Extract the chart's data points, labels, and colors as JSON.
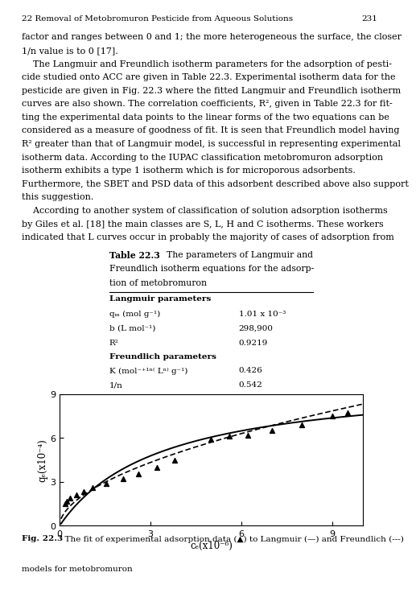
{
  "title_header": "22 Removal of Metobromuron Pesticide from Aqueous Solutions",
  "page_number": "231",
  "body_text": [
    "factor and ranges between 0 and 1; the more heterogeneous the surface, the closer",
    "1/n value is to 0 [17].",
    "    The Langmuir and Freundlich isotherm parameters for the adsorption of pesti-",
    "cide studied onto ACC are given in Table 22.3. Experimental isotherm data for the",
    "pesticide are given in Fig. 22.3 where the fitted Langmuir and Freundlich isotherm",
    "curves are also shown. The correlation coefficients, R², given in Table 22.3 for fit-",
    "ting the experimental data points to the linear forms of the two equations can be",
    "considered as a measure of goodness of fit. It is seen that Freundlich model having",
    "R² greater than that of Langmuir model, is successful in representing experimental",
    "isotherm data. According to the IUPAC classification metobromuron adsorption",
    "isotherm exhibits a type 1 isotherm which is for microporous adsorbents.",
    "Furthermore, the SBET and PSD data of this adsorbent described above also support",
    "this suggestion.",
    "    According to another system of classification of solution adsorption isotherms",
    "by Giles et al. [18] the main classes are S, L, H and C isotherms. These workers",
    "indicated that L curves occur in probably the majority of cases of adsorption from"
  ],
  "langmuir_params": {
    "qm": 0.00101,
    "b": 298900
  },
  "freundlich_params": {
    "K": 0.426,
    "n_inv": 0.542
  },
  "exp_data_x": [
    0.18,
    0.25,
    0.35,
    0.55,
    0.8,
    1.1,
    1.55,
    2.1,
    2.6,
    3.2,
    3.8,
    5.0,
    5.6,
    6.2,
    7.0,
    8.0,
    9.0,
    9.5
  ],
  "exp_data_y": [
    1.5,
    1.65,
    1.9,
    2.1,
    2.35,
    2.6,
    2.9,
    3.2,
    3.55,
    4.0,
    4.5,
    5.9,
    6.1,
    6.2,
    6.5,
    6.9,
    7.5,
    7.7
  ],
  "xlabel": "cₑ(x10⁻⁶)",
  "ylabel": "qₑ(x10⁻⁴)",
  "xlim": [
    0,
    10
  ],
  "ylim": [
    0,
    9
  ],
  "xticks": [
    0,
    3,
    6,
    9
  ],
  "yticks": [
    0,
    3,
    6,
    9
  ],
  "fig_caption_bold": "Fig. 22.3",
  "fig_caption_rest1": "  The fit of experimental adsorption data (▲) to Langmuir (—) and Freundlich (---)",
  "fig_caption_rest2": "models for metobromuron",
  "bg_color": "#ffffff",
  "font_size_body": 8.0,
  "font_size_caption": 7.5,
  "font_size_table_title": 7.8,
  "font_size_table": 7.5,
  "font_size_header": 7.5
}
